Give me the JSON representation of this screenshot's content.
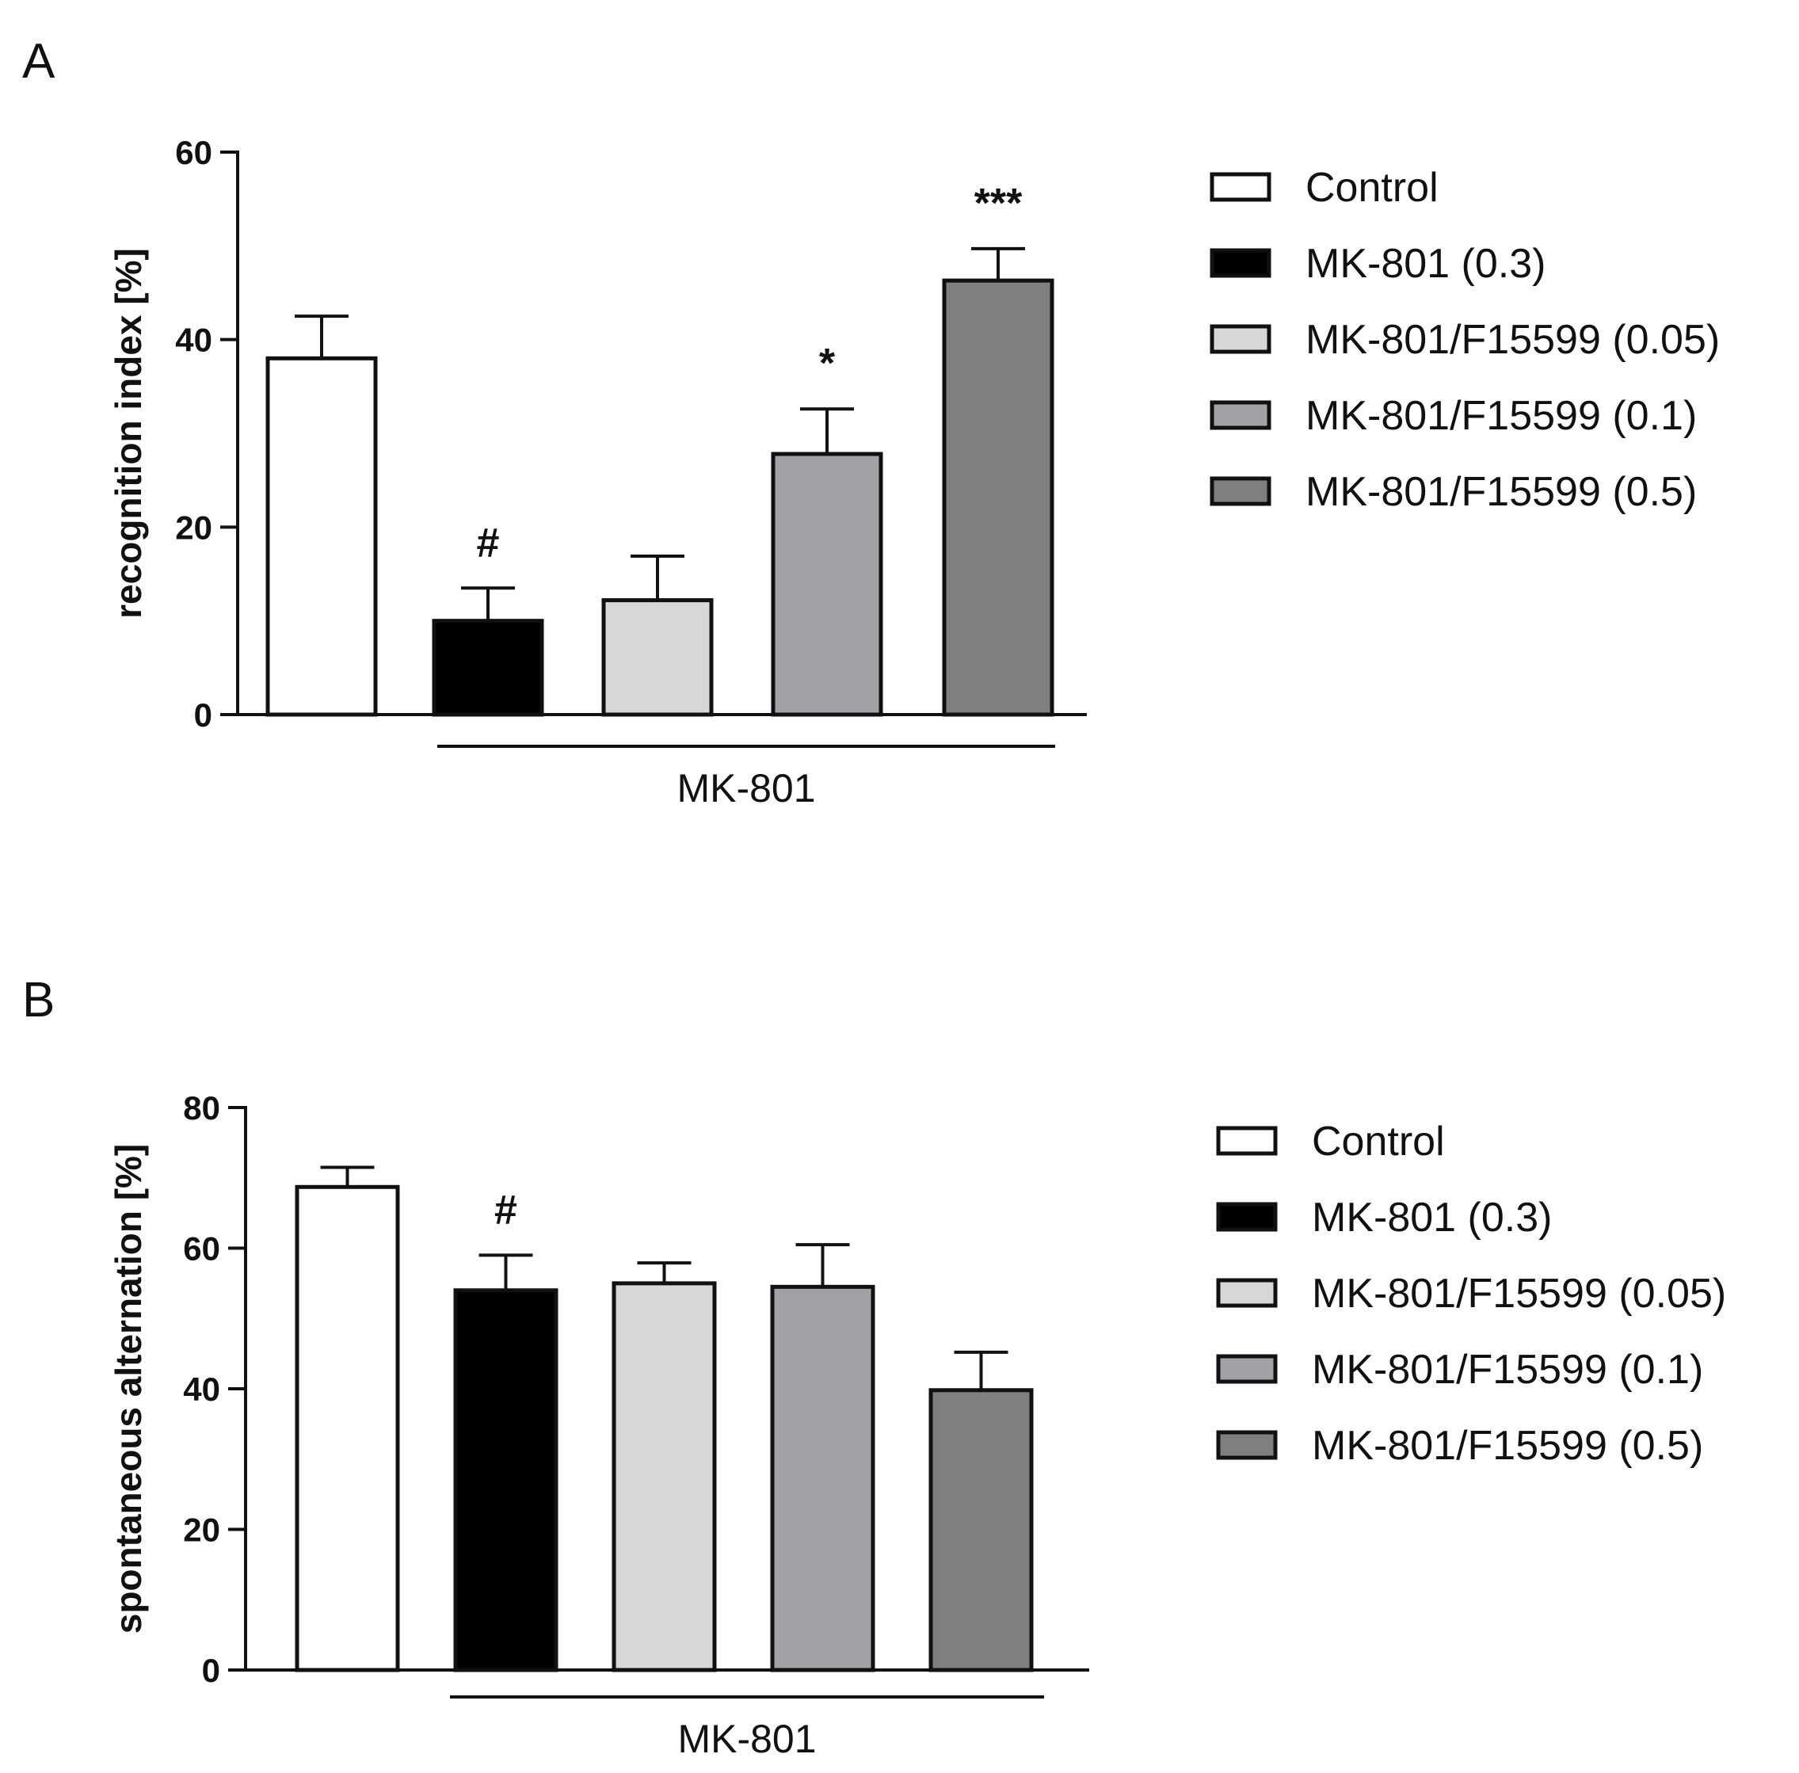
{
  "chart_data": [
    {
      "panel": "A",
      "type": "bar",
      "ylabel": "recognition index [%]",
      "ylim": [
        0,
        60
      ],
      "yticks": [
        0,
        20,
        40,
        60
      ],
      "series": [
        {
          "name": "Control",
          "value": 38,
          "error": 4.5,
          "color": "#ffffff",
          "annotation": ""
        },
        {
          "name": "MK-801 (0.3)",
          "value": 10,
          "error": 3.5,
          "color": "#000000",
          "annotation": "#"
        },
        {
          "name": "MK-801/F15599 (0.05)",
          "value": 12.2,
          "error": 4.7,
          "color": "#d7d7d7",
          "annotation": ""
        },
        {
          "name": "MK-801/F15599 (0.1)",
          "value": 27.8,
          "error": 4.8,
          "color": "#a2a2a6",
          "annotation": "*"
        },
        {
          "name": "MK-801/F15599 (0.5)",
          "value": 46.3,
          "error": 3.4,
          "color": "#7f7f7f",
          "annotation": "***"
        }
      ],
      "group_label": "MK-801",
      "legend": [
        "Control",
        "MK-801 (0.3)",
        "MK-801/F15599 (0.05)",
        "MK-801/F15599 (0.1)",
        "MK-801/F15599 (0.5)"
      ]
    },
    {
      "panel": "B",
      "type": "bar",
      "ylabel": "spontaneous alternation [%]",
      "ylim": [
        0,
        80
      ],
      "yticks": [
        0,
        20,
        40,
        60,
        80
      ],
      "series": [
        {
          "name": "Control",
          "value": 68.7,
          "error": 2.8,
          "color": "#ffffff",
          "annotation": ""
        },
        {
          "name": "MK-801 (0.3)",
          "value": 54,
          "error": 5,
          "color": "#000000",
          "annotation": "#"
        },
        {
          "name": "MK-801/F15599 (0.05)",
          "value": 55,
          "error": 2.9,
          "color": "#d7d7d7",
          "annotation": ""
        },
        {
          "name": "MK-801/F15599 (0.1)",
          "value": 54.5,
          "error": 6,
          "color": "#a2a2a6",
          "annotation": ""
        },
        {
          "name": "MK-801/F15599 (0.5)",
          "value": 39.8,
          "error": 5.4,
          "color": "#7f7f7f",
          "annotation": ""
        }
      ],
      "group_label": "MK-801",
      "legend": [
        "Control",
        "MK-801 (0.3)",
        "MK-801/F15599 (0.05)",
        "MK-801/F15599 (0.1)",
        "MK-801/F15599 (0.5)"
      ]
    }
  ]
}
